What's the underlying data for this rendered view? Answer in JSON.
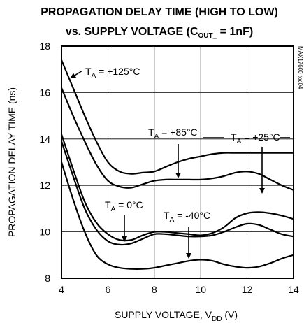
{
  "chart_data": {
    "type": "line",
    "title_line1": "PROPAGATION DELAY TIME (HIGH TO LOW)",
    "title_line2_main": "vs. SUPPLY VOLTAGE (C",
    "title_line2_sub": "OUT_",
    "title_line2_tail": " = 1nF)",
    "xlabel_main": "SUPPLY VOLTAGE, V",
    "xlabel_sub": "DD",
    "xlabel_tail": " (V)",
    "ylabel": "PROPAGATION DELAY TIME (ns)",
    "side_label": "MAX17600 toc04",
    "xlim": [
      4,
      14
    ],
    "ylim": [
      8,
      18
    ],
    "x_ticks": [
      4,
      6,
      8,
      10,
      12,
      14
    ],
    "y_ticks": [
      8,
      10,
      12,
      14,
      16,
      18
    ],
    "grid": true,
    "x": [
      4,
      4.5,
      5,
      5.5,
      6,
      6.5,
      7,
      7.5,
      8,
      8.5,
      9,
      9.5,
      10,
      10.5,
      11,
      11.5,
      12,
      12.5,
      13,
      13.5,
      14
    ],
    "series": [
      {
        "name": "T_A = +125°C",
        "values": [
          17.4,
          16.2,
          15.0,
          13.9,
          13.0,
          12.6,
          12.5,
          12.55,
          12.6,
          12.8,
          13.0,
          13.15,
          13.25,
          13.35,
          13.4,
          13.4,
          13.4,
          13.4,
          13.4,
          13.4,
          13.4
        ]
      },
      {
        "name": "T_A = +85°C",
        "values": [
          16.2,
          15.0,
          13.9,
          12.9,
          12.2,
          11.95,
          11.9,
          12.05,
          12.2,
          12.25,
          12.25,
          12.25,
          12.25,
          12.3,
          12.4,
          12.55,
          12.6,
          12.5,
          12.25,
          12.0,
          11.8
        ]
      },
      {
        "name": "T_A = +25°C",
        "values": [
          14.2,
          12.7,
          11.3,
          10.4,
          9.9,
          9.65,
          9.65,
          9.85,
          10.0,
          10.0,
          9.95,
          9.9,
          9.85,
          9.95,
          10.2,
          10.6,
          10.8,
          10.85,
          10.8,
          10.7,
          10.55
        ]
      },
      {
        "name": "T_A = 0°C",
        "values": [
          13.9,
          12.4,
          11.0,
          10.1,
          9.6,
          9.45,
          9.5,
          9.7,
          9.9,
          9.9,
          9.85,
          9.8,
          9.8,
          9.85,
          10.0,
          10.2,
          10.35,
          10.3,
          10.1,
          9.9,
          9.8
        ]
      },
      {
        "name": "T_A = -40°C",
        "values": [
          13.0,
          11.4,
          10.0,
          9.0,
          8.6,
          8.45,
          8.4,
          8.4,
          8.45,
          8.55,
          8.65,
          8.75,
          8.8,
          8.75,
          8.6,
          8.5,
          8.45,
          8.5,
          8.65,
          8.85,
          9.0
        ]
      }
    ],
    "annotations": [
      {
        "pre": "T",
        "sub": "A",
        "post": " = +125°C"
      },
      {
        "pre": "T",
        "sub": "A",
        "post": " = +85°C"
      },
      {
        "pre": "T",
        "sub": "A",
        "post": " = +25°C"
      },
      {
        "pre": "T",
        "sub": "A",
        "post": " = 0°C"
      },
      {
        "pre": "T",
        "sub": "A",
        "post": " = -40°C"
      }
    ]
  }
}
